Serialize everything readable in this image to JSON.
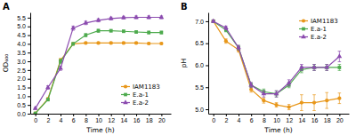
{
  "chart_data": [
    {
      "type": "line",
      "title": "A",
      "x_label": "Time (h)",
      "y_label": "OD₆₀₀",
      "x": [
        0,
        2,
        4,
        6,
        8,
        10,
        12,
        14,
        16,
        18,
        20
      ],
      "series": [
        {
          "name": "IAM1183",
          "color": "#e8971a",
          "marker": "circle",
          "values": [
            0.02,
            0.85,
            3.05,
            4.0,
            4.05,
            4.05,
            4.05,
            4.05,
            4.05,
            4.02,
            4.02
          ],
          "errors": [
            0.02,
            0.06,
            0.12,
            0.06,
            0.05,
            0.05,
            0.05,
            0.05,
            0.05,
            0.05,
            0.05
          ]
        },
        {
          "name": "E.a-1",
          "color": "#4daa4d",
          "marker": "square",
          "values": [
            0.02,
            0.8,
            3.0,
            4.0,
            4.5,
            4.75,
            4.75,
            4.72,
            4.68,
            4.65,
            4.65
          ],
          "errors": [
            0.02,
            0.06,
            0.12,
            0.07,
            0.09,
            0.09,
            0.07,
            0.07,
            0.07,
            0.08,
            0.08
          ]
        },
        {
          "name": "E.a-2",
          "color": "#8b4baf",
          "marker": "triangle",
          "values": [
            0.3,
            1.5,
            2.6,
            4.9,
            5.2,
            5.35,
            5.45,
            5.5,
            5.52,
            5.52,
            5.52
          ],
          "errors": [
            0.05,
            0.1,
            0.12,
            0.12,
            0.1,
            0.09,
            0.08,
            0.08,
            0.08,
            0.08,
            0.08
          ]
        }
      ],
      "xlim": [
        -0.8,
        21.5
      ],
      "xticks": [
        0,
        2,
        4,
        6,
        8,
        10,
        12,
        14,
        16,
        18,
        20
      ],
      "ylim": [
        0.0,
        5.8
      ],
      "yticks": [
        {
          "value": 0,
          "label": "0.0"
        },
        0.5,
        {
          "value": 1,
          "label": "1.0"
        },
        1.5,
        {
          "value": 2,
          "label": "2.0"
        },
        2.5,
        {
          "value": 3,
          "label": "3.0"
        },
        3.5,
        {
          "value": 4,
          "label": "4.0"
        },
        4.5,
        {
          "value": 5,
          "label": "5.0"
        },
        5.5
      ],
      "legend": "lower right",
      "grid": false
    },
    {
      "type": "line",
      "title": "B",
      "x_label": "Time (h)",
      "y_label": "pH",
      "x": [
        0,
        2,
        4,
        6,
        8,
        10,
        12,
        14,
        16,
        18,
        20
      ],
      "series": [
        {
          "name": "IAM1183",
          "color": "#e8971a",
          "marker": "circle",
          "values": [
            7.0,
            6.55,
            6.35,
            5.45,
            5.2,
            5.1,
            5.05,
            5.15,
            5.15,
            5.2,
            5.25
          ],
          "errors": [
            0.03,
            0.05,
            0.05,
            0.06,
            0.06,
            0.05,
            0.06,
            0.18,
            0.18,
            0.18,
            0.12
          ]
        },
        {
          "name": "E.a-1",
          "color": "#4daa4d",
          "marker": "square",
          "values": [
            7.0,
            6.8,
            6.4,
            5.55,
            5.4,
            5.35,
            5.55,
            5.9,
            5.95,
            5.95,
            5.95
          ],
          "errors": [
            0.03,
            0.04,
            0.05,
            0.05,
            0.06,
            0.07,
            0.06,
            0.07,
            0.07,
            0.07,
            0.07
          ]
        },
        {
          "name": "E.a-2",
          "color": "#8b4baf",
          "marker": "triangle",
          "values": [
            7.0,
            6.85,
            6.4,
            5.55,
            5.35,
            5.35,
            5.6,
            5.95,
            5.95,
            5.95,
            6.2
          ],
          "errors": [
            0.03,
            0.04,
            0.05,
            0.06,
            0.07,
            0.07,
            0.07,
            0.07,
            0.07,
            0.07,
            0.12
          ]
        }
      ],
      "xlim": [
        -0.8,
        21.5
      ],
      "xticks": [
        0,
        2,
        4,
        6,
        8,
        10,
        12,
        14,
        16,
        18,
        20
      ],
      "ylim": [
        4.9,
        7.2
      ],
      "yticks": [
        {
          "value": 5,
          "label": "5.0"
        },
        5.5,
        {
          "value": 6,
          "label": "6.0"
        },
        6.5,
        {
          "value": 7,
          "label": "7.0"
        }
      ],
      "legend": "upper right",
      "grid": false
    }
  ]
}
